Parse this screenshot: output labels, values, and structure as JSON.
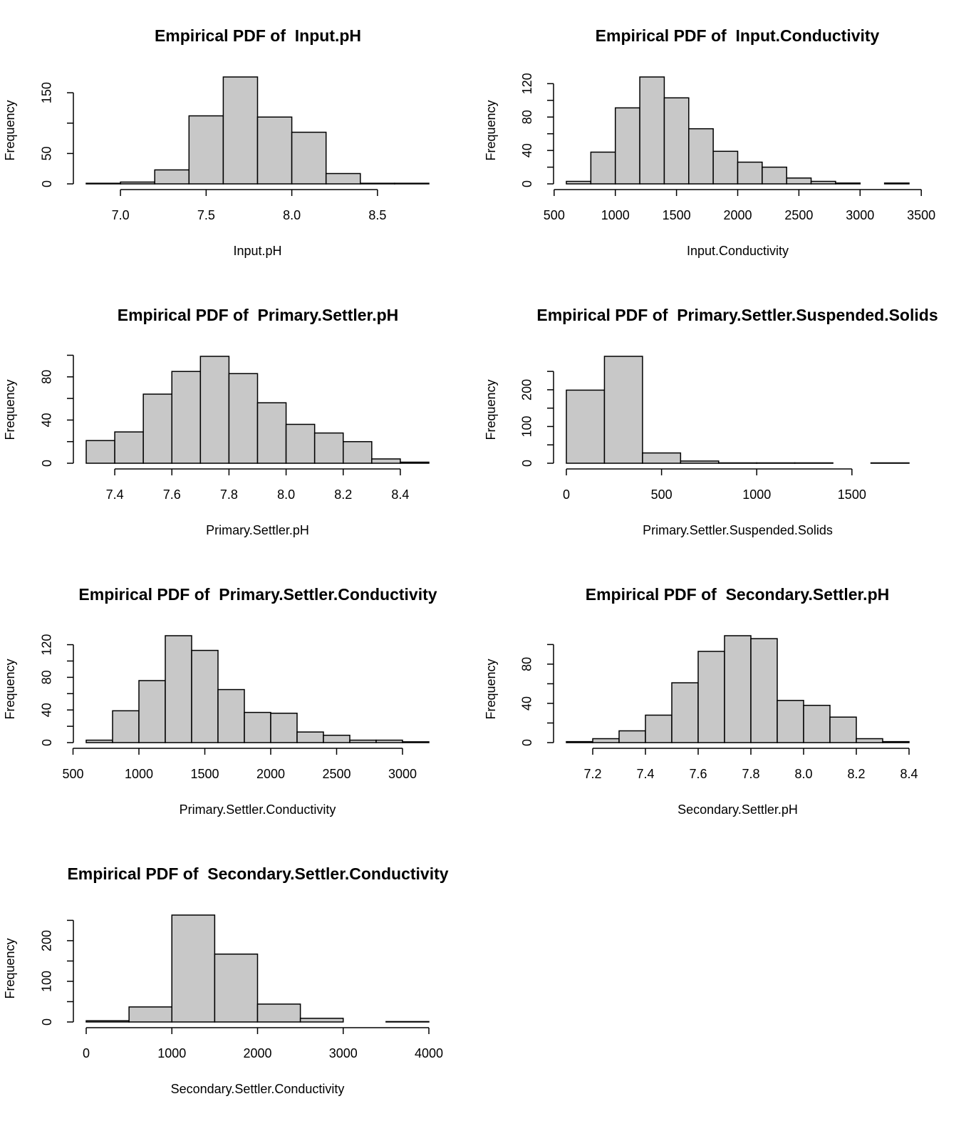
{
  "chart_data": [
    {
      "type": "histogram",
      "title": "Empirical PDF of  Input.pH",
      "xlabel": "Input.pH",
      "ylabel": "Frequency",
      "color": "#c8c8c8",
      "bins": [
        6.8,
        7.0,
        7.2,
        7.4,
        7.6,
        7.8,
        8.0,
        8.2,
        8.4,
        8.6,
        8.8
      ],
      "values": [
        1,
        3,
        23,
        112,
        176,
        110,
        85,
        17,
        1,
        1
      ],
      "xlim": [
        6.8,
        8.8
      ],
      "ylim": [
        0,
        176
      ],
      "xticks": [
        {
          "value": 7,
          "label": "7.0"
        },
        7.5,
        {
          "value": 8,
          "label": "8.0"
        },
        8.5
      ],
      "yticks": [
        0,
        50,
        {
          "value": 100,
          "label": null
        },
        150
      ]
    },
    {
      "type": "histogram",
      "title": "Empirical PDF of  Input.Conductivity",
      "xlabel": "Input.Conductivity",
      "ylabel": "Frequency",
      "color": "#c8c8c8",
      "bins": [
        600,
        800,
        1000,
        1200,
        1400,
        1600,
        1800,
        2000,
        2200,
        2400,
        2600,
        2800,
        3000,
        3200,
        3400
      ],
      "values": [
        3,
        38,
        91,
        128,
        103,
        66,
        39,
        26,
        20,
        7,
        3,
        1,
        0,
        1
      ],
      "xlim": [
        600,
        3400
      ],
      "ylim": [
        0,
        128
      ],
      "xticks": [
        500,
        1000,
        1500,
        2000,
        2500,
        3000,
        3500
      ],
      "yticks": [
        0,
        {
          "value": 20,
          "label": null
        },
        40,
        {
          "value": 60,
          "label": null
        },
        80,
        {
          "value": 100,
          "label": null
        },
        120
      ]
    },
    {
      "type": "histogram",
      "title": "Empirical PDF of  Primary.Settler.pH",
      "xlabel": "Primary.Settler.pH",
      "ylabel": "Frequency",
      "color": "#c8c8c8",
      "bins": [
        7.3,
        7.4,
        7.5,
        7.6,
        7.7,
        7.8,
        7.9,
        8.0,
        8.1,
        8.2,
        8.3,
        8.4,
        8.5
      ],
      "values": [
        21,
        29,
        64,
        85,
        99,
        83,
        56,
        36,
        28,
        20,
        4,
        1
      ],
      "xlim": [
        7.3,
        8.5
      ],
      "ylim": [
        0,
        99
      ],
      "xticks": [
        7.4,
        7.6,
        7.8,
        {
          "value": 8,
          "label": "8.0"
        },
        8.2,
        8.4
      ],
      "yticks": [
        0,
        {
          "value": 20,
          "label": null
        },
        40,
        {
          "value": 60,
          "label": null
        },
        80,
        {
          "value": 100,
          "label": null
        }
      ]
    },
    {
      "type": "histogram",
      "title": "Empirical PDF of  Primary.Settler.Suspended.Solids",
      "xlabel": "Primary.Settler.Suspended.Solids",
      "ylabel": "Frequency",
      "color": "#c8c8c8",
      "bins": [
        0,
        200,
        400,
        600,
        800,
        1000,
        1200,
        1400,
        1600,
        1800
      ],
      "values": [
        199,
        291,
        28,
        6,
        1,
        1,
        1,
        0,
        1
      ],
      "xlim": [
        0,
        1800
      ],
      "ylim": [
        0,
        291
      ],
      "xticks": [
        0,
        500,
        1000,
        1500
      ],
      "yticks": [
        0,
        {
          "value": 50,
          "label": null
        },
        100,
        {
          "value": 150,
          "label": null
        },
        200,
        {
          "value": 250,
          "label": null
        }
      ]
    },
    {
      "type": "histogram",
      "title": "Empirical PDF of  Primary.Settler.Conductivity",
      "xlabel": "Primary.Settler.Conductivity",
      "ylabel": "Frequency",
      "color": "#c8c8c8",
      "bins": [
        600,
        800,
        1000,
        1200,
        1400,
        1600,
        1800,
        2000,
        2200,
        2400,
        2600,
        2800,
        3000,
        3200
      ],
      "values": [
        3,
        39,
        76,
        131,
        113,
        65,
        37,
        36,
        13,
        9,
        3,
        3,
        1
      ],
      "xlim": [
        600,
        3200
      ],
      "ylim": [
        0,
        131
      ],
      "xticks": [
        500,
        1000,
        1500,
        2000,
        2500,
        3000
      ],
      "yticks": [
        0,
        {
          "value": 20,
          "label": null
        },
        40,
        {
          "value": 60,
          "label": null
        },
        80,
        {
          "value": 100,
          "label": null
        },
        120
      ]
    },
    {
      "type": "histogram",
      "title": "Empirical PDF of  Secondary.Settler.pH",
      "xlabel": "Secondary.Settler.pH",
      "ylabel": "Frequency",
      "color": "#c8c8c8",
      "bins": [
        7.1,
        7.2,
        7.3,
        7.4,
        7.5,
        7.6,
        7.7,
        7.8,
        7.9,
        8.0,
        8.1,
        8.2,
        8.3,
        8.4
      ],
      "values": [
        1,
        4,
        12,
        28,
        61,
        93,
        109,
        106,
        43,
        38,
        26,
        4,
        1
      ],
      "xlim": [
        7.1,
        8.4
      ],
      "ylim": [
        0,
        109
      ],
      "xticks": [
        7.2,
        7.4,
        7.6,
        7.8,
        {
          "value": 8,
          "label": "8.0"
        },
        8.2,
        8.4
      ],
      "yticks": [
        0,
        {
          "value": 20,
          "label": null
        },
        40,
        {
          "value": 60,
          "label": null
        },
        80,
        {
          "value": 100,
          "label": null
        }
      ]
    },
    {
      "type": "histogram",
      "title": "Empirical PDF of  Secondary.Settler.Conductivity",
      "xlabel": "Secondary.Settler.Conductivity",
      "ylabel": "Frequency",
      "color": "#c8c8c8",
      "bins": [
        0,
        500,
        1000,
        1500,
        2000,
        2500,
        3000,
        3500,
        4000
      ],
      "values": [
        3,
        37,
        263,
        167,
        44,
        9,
        0,
        1
      ],
      "xlim": [
        0,
        4000
      ],
      "ylim": [
        0,
        263
      ],
      "xticks": [
        0,
        1000,
        2000,
        3000,
        4000
      ],
      "yticks": [
        0,
        {
          "value": 50,
          "label": null
        },
        100,
        {
          "value": 150,
          "label": null
        },
        200,
        {
          "value": 250,
          "label": null
        }
      ]
    }
  ]
}
